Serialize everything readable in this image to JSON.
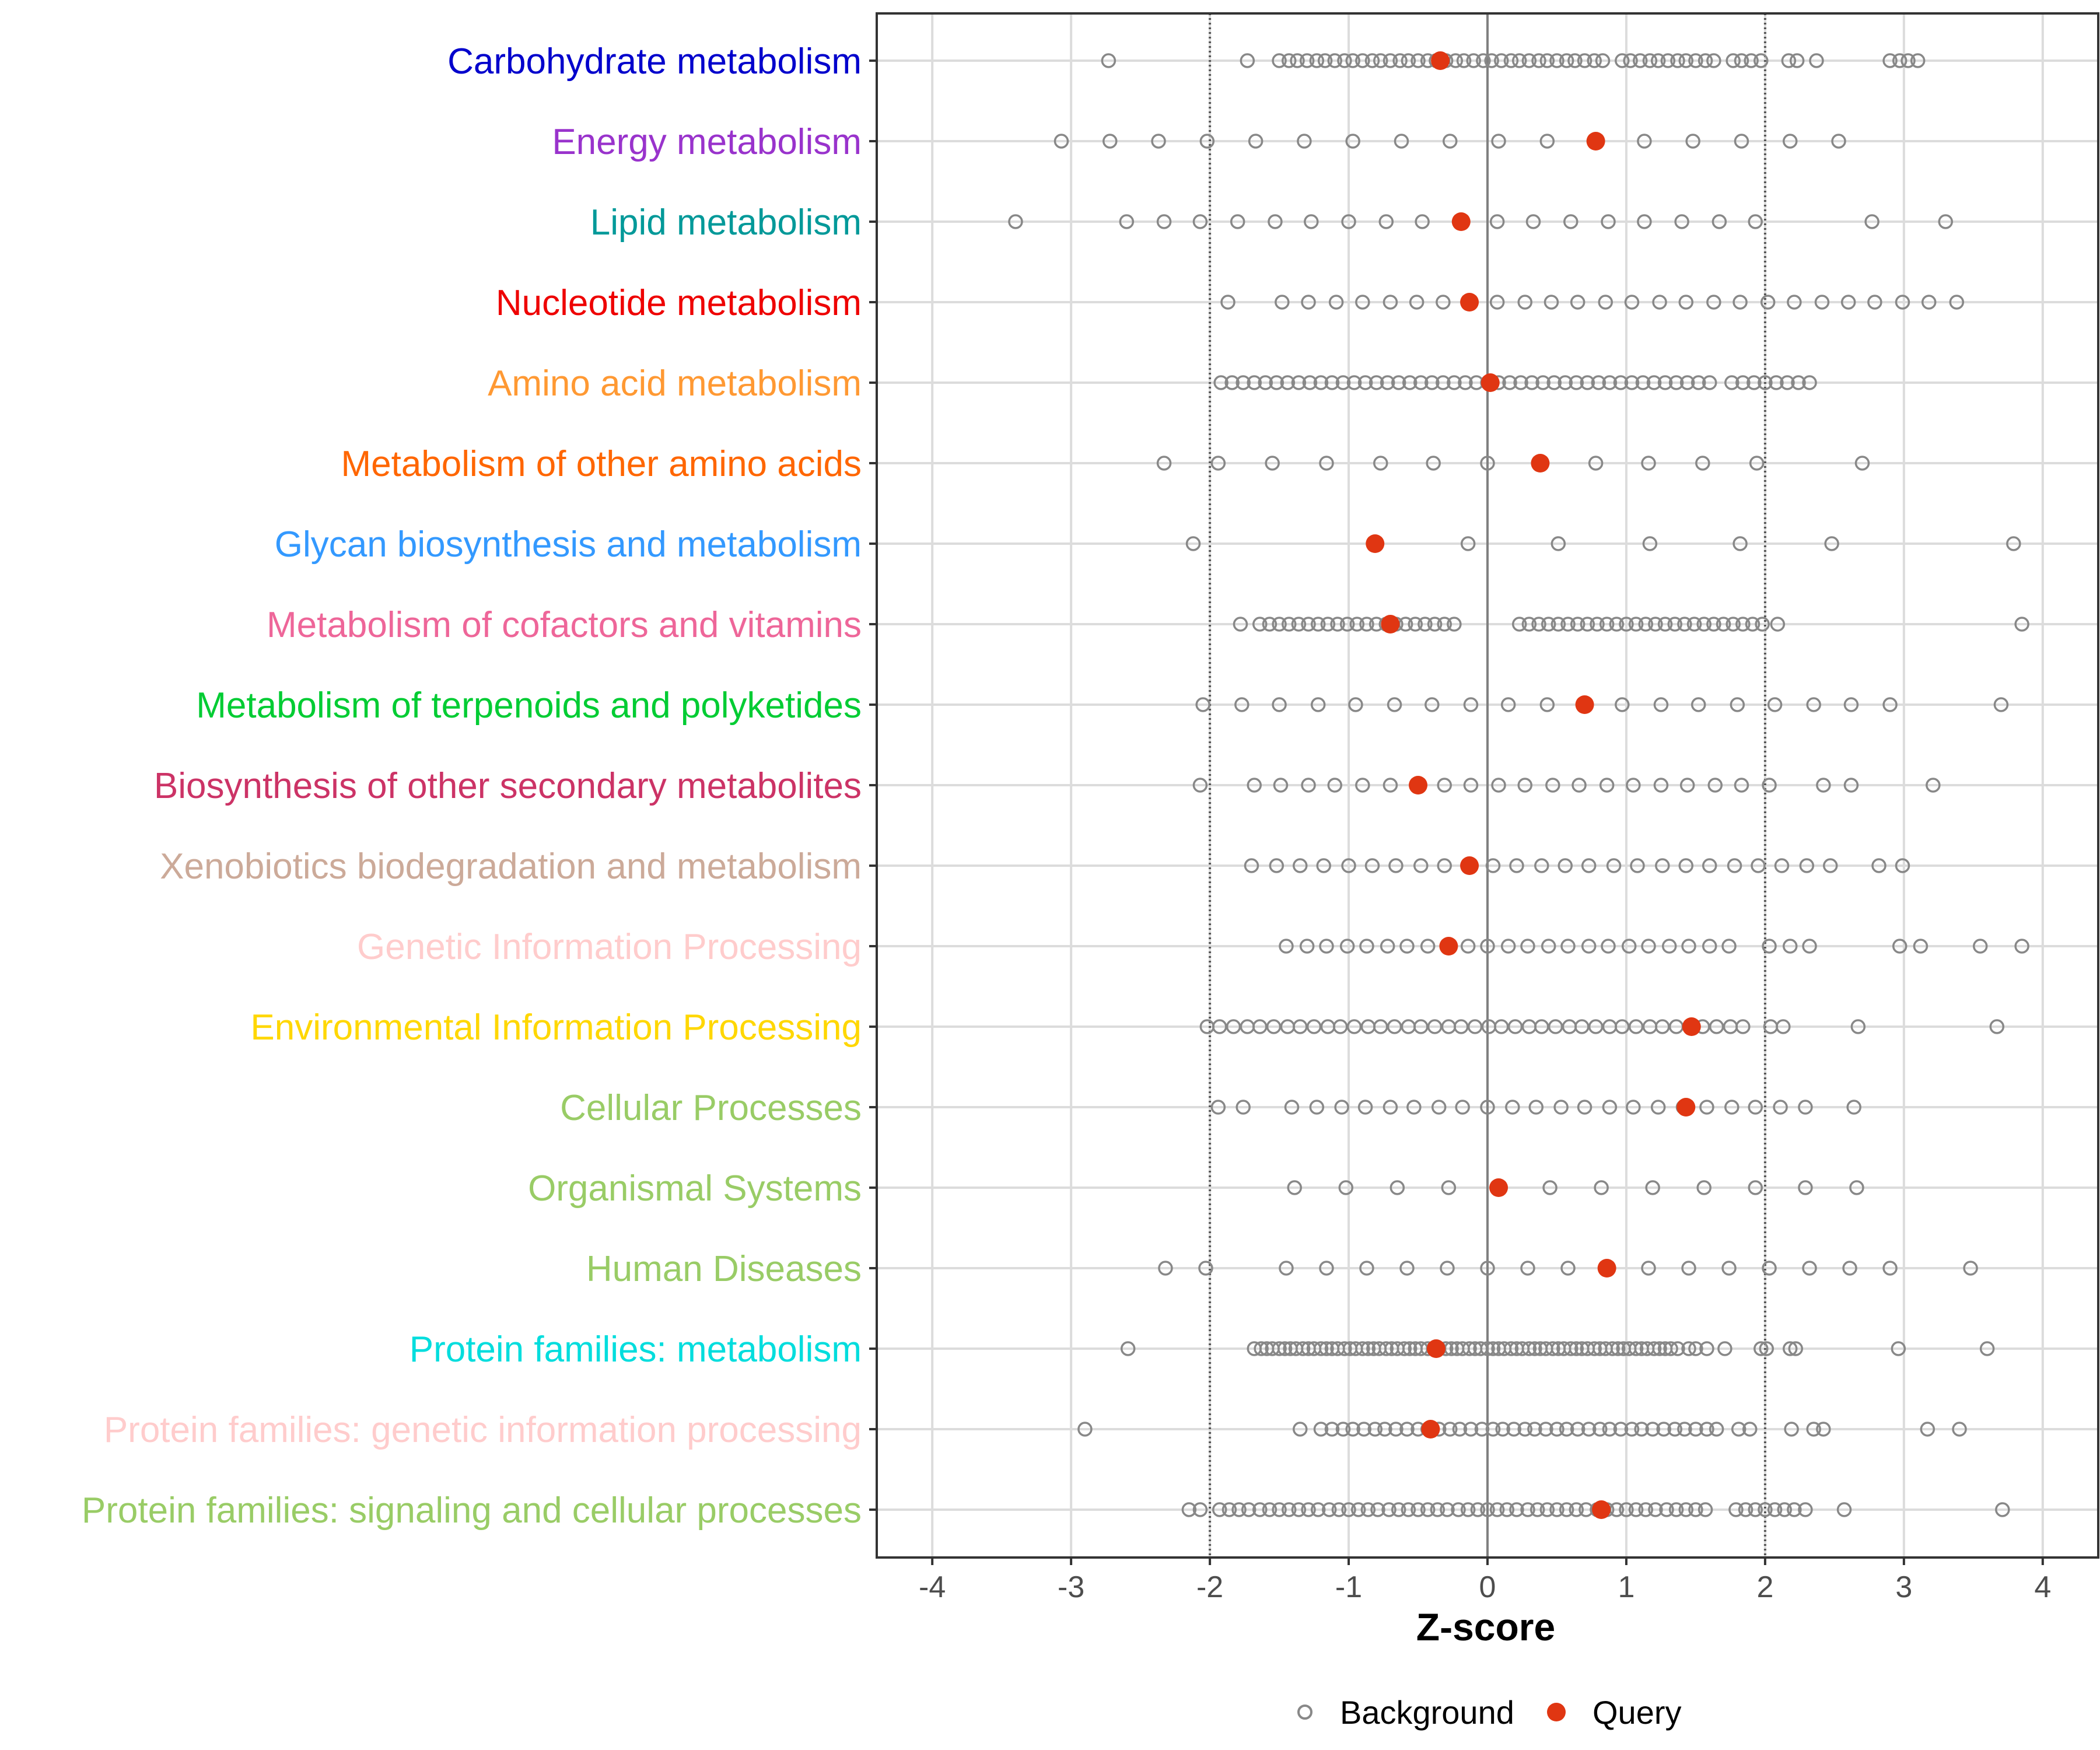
{
  "chart_data": {
    "type": "scatter",
    "title": "",
    "xlabel": "Z-score",
    "ylabel": "",
    "xlim": [
      -4.4,
      4.4
    ],
    "xticks": [
      -4,
      -3,
      -2,
      -1,
      0,
      1,
      2,
      3,
      4
    ],
    "xtick_labels": [
      "-4",
      "-3",
      "-2",
      "-1",
      "0",
      "1",
      "2",
      "3",
      "4"
    ],
    "threshold_lines": [
      -2,
      2
    ],
    "zero_line": 0,
    "grid": true,
    "legend": {
      "position": "bottom",
      "entries": [
        {
          "name": "Background",
          "marker": "open-circle",
          "color": "#888888"
        },
        {
          "name": "Query",
          "marker": "filled-circle",
          "color": "#e03612"
        }
      ]
    },
    "categories": [
      {
        "label": "Carbohydrate metabolism",
        "color": "#0000cc",
        "query": -0.34,
        "background": [
          -2.73,
          -1.73,
          -1.5,
          -1.43,
          -1.37,
          -1.3,
          -1.23,
          -1.17,
          -1.1,
          -1.03,
          -0.97,
          -0.9,
          -0.83,
          -0.77,
          -0.7,
          -0.63,
          -0.57,
          -0.5,
          -0.43,
          -0.37,
          -0.3,
          -0.23,
          -0.17,
          -0.1,
          -0.03,
          0.03,
          0.1,
          0.17,
          0.23,
          0.3,
          0.37,
          0.43,
          0.5,
          0.57,
          0.63,
          0.7,
          0.77,
          0.83,
          0.97,
          1.03,
          1.1,
          1.17,
          1.23,
          1.3,
          1.37,
          1.43,
          1.5,
          1.57,
          1.63,
          1.77,
          1.83,
          1.9,
          1.97,
          2.17,
          2.23,
          2.37,
          2.9,
          2.97,
          3.03,
          3.1
        ]
      },
      {
        "label": "Energy metabolism",
        "color": "#9933cc",
        "query": 0.78,
        "background": [
          -3.07,
          -2.72,
          -2.37,
          -2.02,
          -1.67,
          -1.32,
          -0.97,
          -0.62,
          -0.27,
          0.08,
          0.43,
          0.78,
          1.13,
          1.48,
          1.83,
          2.18,
          2.53
        ]
      },
      {
        "label": "Lipid metabolism",
        "color": "#009999",
        "query": -0.19,
        "background": [
          -3.4,
          -2.6,
          -2.33,
          -2.07,
          -1.8,
          -1.53,
          -1.27,
          -1.0,
          -0.73,
          -0.47,
          -0.2,
          0.07,
          0.33,
          0.6,
          0.87,
          1.13,
          1.4,
          1.67,
          1.93,
          2.77,
          3.3
        ]
      },
      {
        "label": "Nucleotide metabolism",
        "color": "#ee0000",
        "query": -0.13,
        "background": [
          -1.87,
          -1.48,
          -1.29,
          -1.09,
          -0.9,
          -0.7,
          -0.51,
          -0.32,
          -0.12,
          0.07,
          0.27,
          0.46,
          0.65,
          0.85,
          1.04,
          1.24,
          1.43,
          1.63,
          1.82,
          2.02,
          2.21,
          2.41,
          2.6,
          2.79,
          2.99,
          3.18,
          3.38
        ]
      },
      {
        "label": "Amino acid metabolism",
        "color": "#ff9933",
        "query": 0.02,
        "background": [
          -1.92,
          -1.84,
          -1.76,
          -1.68,
          -1.6,
          -1.52,
          -1.44,
          -1.36,
          -1.28,
          -1.2,
          -1.12,
          -1.04,
          -0.96,
          -0.88,
          -0.8,
          -0.72,
          -0.64,
          -0.56,
          -0.48,
          -0.4,
          -0.32,
          -0.24,
          -0.16,
          -0.08,
          0.0,
          0.08,
          0.16,
          0.24,
          0.32,
          0.4,
          0.48,
          0.56,
          0.64,
          0.72,
          0.8,
          0.88,
          0.96,
          1.04,
          1.12,
          1.2,
          1.28,
          1.36,
          1.44,
          1.52,
          1.6,
          1.76,
          1.84,
          1.92,
          2.0,
          2.08,
          2.16,
          2.24,
          2.32
        ]
      },
      {
        "label": "Metabolism of other amino acids",
        "color": "#ff6600",
        "query": 0.38,
        "background": [
          -2.33,
          -1.94,
          -1.55,
          -1.16,
          -0.77,
          -0.39,
          0.0,
          0.39,
          0.78,
          1.16,
          1.55,
          1.94,
          2.7
        ]
      },
      {
        "label": "Glycan biosynthesis and metabolism",
        "color": "#3399ff",
        "query": -0.81,
        "background": [
          -2.12,
          -0.14,
          0.51,
          1.17,
          1.82,
          2.48,
          3.79
        ]
      },
      {
        "label": "Metabolism of cofactors and vitamins",
        "color": "#ee6699",
        "query": -0.7,
        "background": [
          -1.78,
          -1.64,
          -1.57,
          -1.5,
          -1.43,
          -1.36,
          -1.29,
          -1.22,
          -1.15,
          -1.08,
          -1.01,
          -0.94,
          -0.87,
          -0.8,
          -0.73,
          -0.66,
          -0.59,
          -0.52,
          -0.45,
          -0.38,
          -0.31,
          -0.24,
          0.23,
          0.3,
          0.37,
          0.44,
          0.51,
          0.58,
          0.65,
          0.72,
          0.79,
          0.86,
          0.93,
          1.0,
          1.07,
          1.14,
          1.21,
          1.28,
          1.35,
          1.42,
          1.49,
          1.56,
          1.63,
          1.7,
          1.77,
          1.84,
          1.91,
          1.98,
          2.09,
          3.85
        ]
      },
      {
        "label": "Metabolism of terpenoids and polyketides",
        "color": "#00cc33",
        "query": 0.7,
        "background": [
          -2.05,
          -1.77,
          -1.5,
          -1.22,
          -0.95,
          -0.67,
          -0.4,
          -0.12,
          0.15,
          0.43,
          0.7,
          0.97,
          1.25,
          1.52,
          1.8,
          2.07,
          2.35,
          2.62,
          2.9,
          3.7
        ]
      },
      {
        "label": "Biosynthesis of other secondary metabolites",
        "color": "#cc3366",
        "query": -0.5,
        "background": [
          -2.07,
          -1.68,
          -1.49,
          -1.29,
          -1.1,
          -0.9,
          -0.7,
          -0.51,
          -0.31,
          -0.12,
          0.08,
          0.27,
          0.47,
          0.66,
          0.86,
          1.05,
          1.25,
          1.44,
          1.64,
          1.83,
          2.03,
          2.42,
          2.62,
          3.21
        ]
      },
      {
        "label": "Xenobiotics biodegradation and metabolism",
        "color": "#ccaa99",
        "query": -0.13,
        "background": [
          -1.7,
          -1.52,
          -1.35,
          -1.18,
          -1.0,
          -0.83,
          -0.66,
          -0.48,
          -0.31,
          -0.13,
          0.04,
          0.21,
          0.39,
          0.56,
          0.73,
          0.91,
          1.08,
          1.26,
          1.43,
          1.6,
          1.78,
          1.95,
          2.12,
          2.3,
          2.47,
          2.82,
          2.99
        ]
      },
      {
        "label": "Genetic Information Processing",
        "color": "#ffcccc",
        "query": -0.28,
        "background": [
          -1.45,
          -1.3,
          -1.16,
          -1.01,
          -0.87,
          -0.72,
          -0.58,
          -0.43,
          -0.29,
          -0.14,
          0.0,
          0.15,
          0.29,
          0.44,
          0.58,
          0.73,
          0.87,
          1.02,
          1.16,
          1.31,
          1.45,
          1.6,
          1.74,
          2.03,
          2.18,
          2.32,
          2.97,
          3.12,
          3.55,
          3.85
        ]
      },
      {
        "label": "Environmental Information Processing",
        "color": "#ffd700",
        "query": 1.47,
        "background": [
          -2.02,
          -1.93,
          -1.83,
          -1.73,
          -1.64,
          -1.54,
          -1.44,
          -1.35,
          -1.25,
          -1.15,
          -1.06,
          -0.96,
          -0.86,
          -0.77,
          -0.67,
          -0.57,
          -0.48,
          -0.38,
          -0.28,
          -0.19,
          -0.09,
          0.01,
          0.1,
          0.2,
          0.3,
          0.39,
          0.49,
          0.59,
          0.68,
          0.78,
          0.88,
          0.97,
          1.07,
          1.17,
          1.26,
          1.36,
          1.46,
          1.55,
          1.65,
          1.75,
          1.84,
          2.04,
          2.13,
          2.67,
          3.67
        ]
      },
      {
        "label": "Cellular Processes",
        "color": "#99cc66",
        "query": 1.43,
        "background": [
          -1.94,
          -1.76,
          -1.41,
          -1.23,
          -1.05,
          -0.88,
          -0.7,
          -0.53,
          -0.35,
          -0.18,
          0.0,
          0.18,
          0.35,
          0.53,
          0.7,
          0.88,
          1.05,
          1.23,
          1.41,
          1.58,
          1.76,
          1.93,
          2.11,
          2.29,
          2.64
        ]
      },
      {
        "label": "Organismal Systems",
        "color": "#99cc66",
        "query": 0.08,
        "background": [
          -1.39,
          -1.02,
          -0.65,
          -0.28,
          0.08,
          0.45,
          0.82,
          1.19,
          1.56,
          1.93,
          2.29,
          2.66
        ]
      },
      {
        "label": "Human Diseases",
        "color": "#99cc66",
        "query": 0.86,
        "background": [
          -2.32,
          -2.03,
          -1.45,
          -1.16,
          -0.87,
          -0.58,
          -0.29,
          0.0,
          0.29,
          0.58,
          0.87,
          1.16,
          1.45,
          1.74,
          2.03,
          2.32,
          2.61,
          2.9,
          3.48
        ]
      },
      {
        "label": "Protein families: metabolism",
        "color": "#00dddd",
        "query": -0.37,
        "background": [
          -2.59,
          -1.68,
          -1.63,
          -1.59,
          -1.55,
          -1.5,
          -1.46,
          -1.42,
          -1.38,
          -1.33,
          -1.29,
          -1.25,
          -1.2,
          -1.16,
          -1.12,
          -1.08,
          -1.03,
          -0.99,
          -0.95,
          -0.9,
          -0.86,
          -0.82,
          -0.78,
          -0.73,
          -0.69,
          -0.65,
          -0.6,
          -0.56,
          -0.52,
          -0.48,
          -0.43,
          -0.39,
          -0.35,
          -0.3,
          -0.26,
          -0.22,
          -0.18,
          -0.13,
          -0.09,
          -0.05,
          0.0,
          0.04,
          0.08,
          0.12,
          0.17,
          0.21,
          0.25,
          0.3,
          0.34,
          0.38,
          0.42,
          0.47,
          0.51,
          0.55,
          0.6,
          0.64,
          0.68,
          0.72,
          0.77,
          0.81,
          0.85,
          0.9,
          0.94,
          0.98,
          1.02,
          1.07,
          1.11,
          1.15,
          1.2,
          1.24,
          1.28,
          1.32,
          1.37,
          1.45,
          1.5,
          1.58,
          1.71,
          1.97,
          2.01,
          2.18,
          2.22,
          2.96,
          3.6
        ]
      },
      {
        "label": "Protein families: genetic information processing",
        "color": "#ffcccc",
        "query": -0.41,
        "background": [
          -2.9,
          -1.35,
          -1.2,
          -1.12,
          -1.04,
          -0.97,
          -0.89,
          -0.81,
          -0.74,
          -0.66,
          -0.58,
          -0.5,
          -0.43,
          -0.35,
          -0.27,
          -0.2,
          -0.12,
          -0.04,
          0.04,
          0.11,
          0.19,
          0.27,
          0.34,
          0.42,
          0.5,
          0.57,
          0.65,
          0.73,
          0.81,
          0.88,
          0.96,
          1.04,
          1.11,
          1.19,
          1.27,
          1.35,
          1.42,
          1.5,
          1.58,
          1.65,
          1.81,
          1.89,
          2.19,
          2.35,
          2.42,
          3.17,
          3.4
        ]
      },
      {
        "label": "Protein families: signaling and cellular processes",
        "color": "#99cc66",
        "query": 0.82,
        "background": [
          -2.15,
          -2.07,
          -1.93,
          -1.86,
          -1.79,
          -1.72,
          -1.64,
          -1.57,
          -1.5,
          -1.43,
          -1.36,
          -1.29,
          -1.22,
          -1.14,
          -1.07,
          -1.0,
          -0.93,
          -0.86,
          -0.79,
          -0.71,
          -0.64,
          -0.57,
          -0.5,
          -0.43,
          -0.36,
          -0.29,
          -0.21,
          -0.14,
          -0.07,
          0.0,
          0.07,
          0.14,
          0.21,
          0.29,
          0.36,
          0.43,
          0.5,
          0.57,
          0.64,
          0.71,
          0.79,
          0.86,
          0.93,
          1.0,
          1.07,
          1.14,
          1.21,
          1.29,
          1.36,
          1.43,
          1.5,
          1.57,
          1.79,
          1.86,
          1.93,
          2.0,
          2.07,
          2.14,
          2.21,
          2.29,
          2.57,
          3.71
        ]
      }
    ]
  }
}
